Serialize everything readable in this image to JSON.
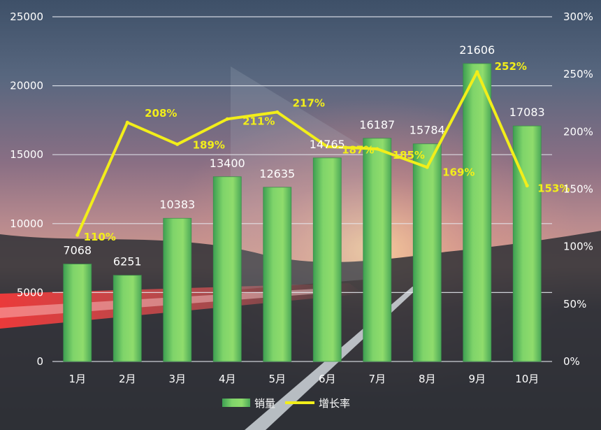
{
  "chart_data": {
    "type": "bar",
    "categories": [
      "1月",
      "2月",
      "3月",
      "4月",
      "5月",
      "6月",
      "7月",
      "8月",
      "9月",
      "10月"
    ],
    "series": [
      {
        "name": "销量",
        "type": "bar",
        "axis": "left",
        "values": [
          7068,
          6251,
          10383,
          13400,
          12635,
          14765,
          16187,
          15784,
          21606,
          17083
        ],
        "labels": [
          "7068",
          "6251",
          "10383",
          "13400",
          "12635",
          "14765",
          "16187",
          "15784",
          "21606",
          "17083"
        ],
        "color": "#7ed957"
      },
      {
        "name": "增长率",
        "type": "line",
        "axis": "right",
        "values": [
          110,
          208,
          189,
          211,
          217,
          187,
          185,
          169,
          252,
          153
        ],
        "labels": [
          "110%",
          "208%",
          "189%",
          "211%",
          "217%",
          "187%",
          "185%",
          "169%",
          "252%",
          "153%"
        ],
        "color": "#f2ee1a"
      }
    ],
    "y_left": {
      "ylim": [
        0,
        25000
      ],
      "ticks": [
        "0",
        "5000",
        "10000",
        "15000",
        "20000",
        "25000"
      ]
    },
    "y_right": {
      "ylim": [
        0,
        300
      ],
      "ticks": [
        "0%",
        "50%",
        "100%",
        "150%",
        "200%",
        "250%",
        "300%"
      ]
    },
    "grid": true,
    "legend": "bottom-center",
    "background": "photo of a highway at dusk with a truck and light trails"
  }
}
